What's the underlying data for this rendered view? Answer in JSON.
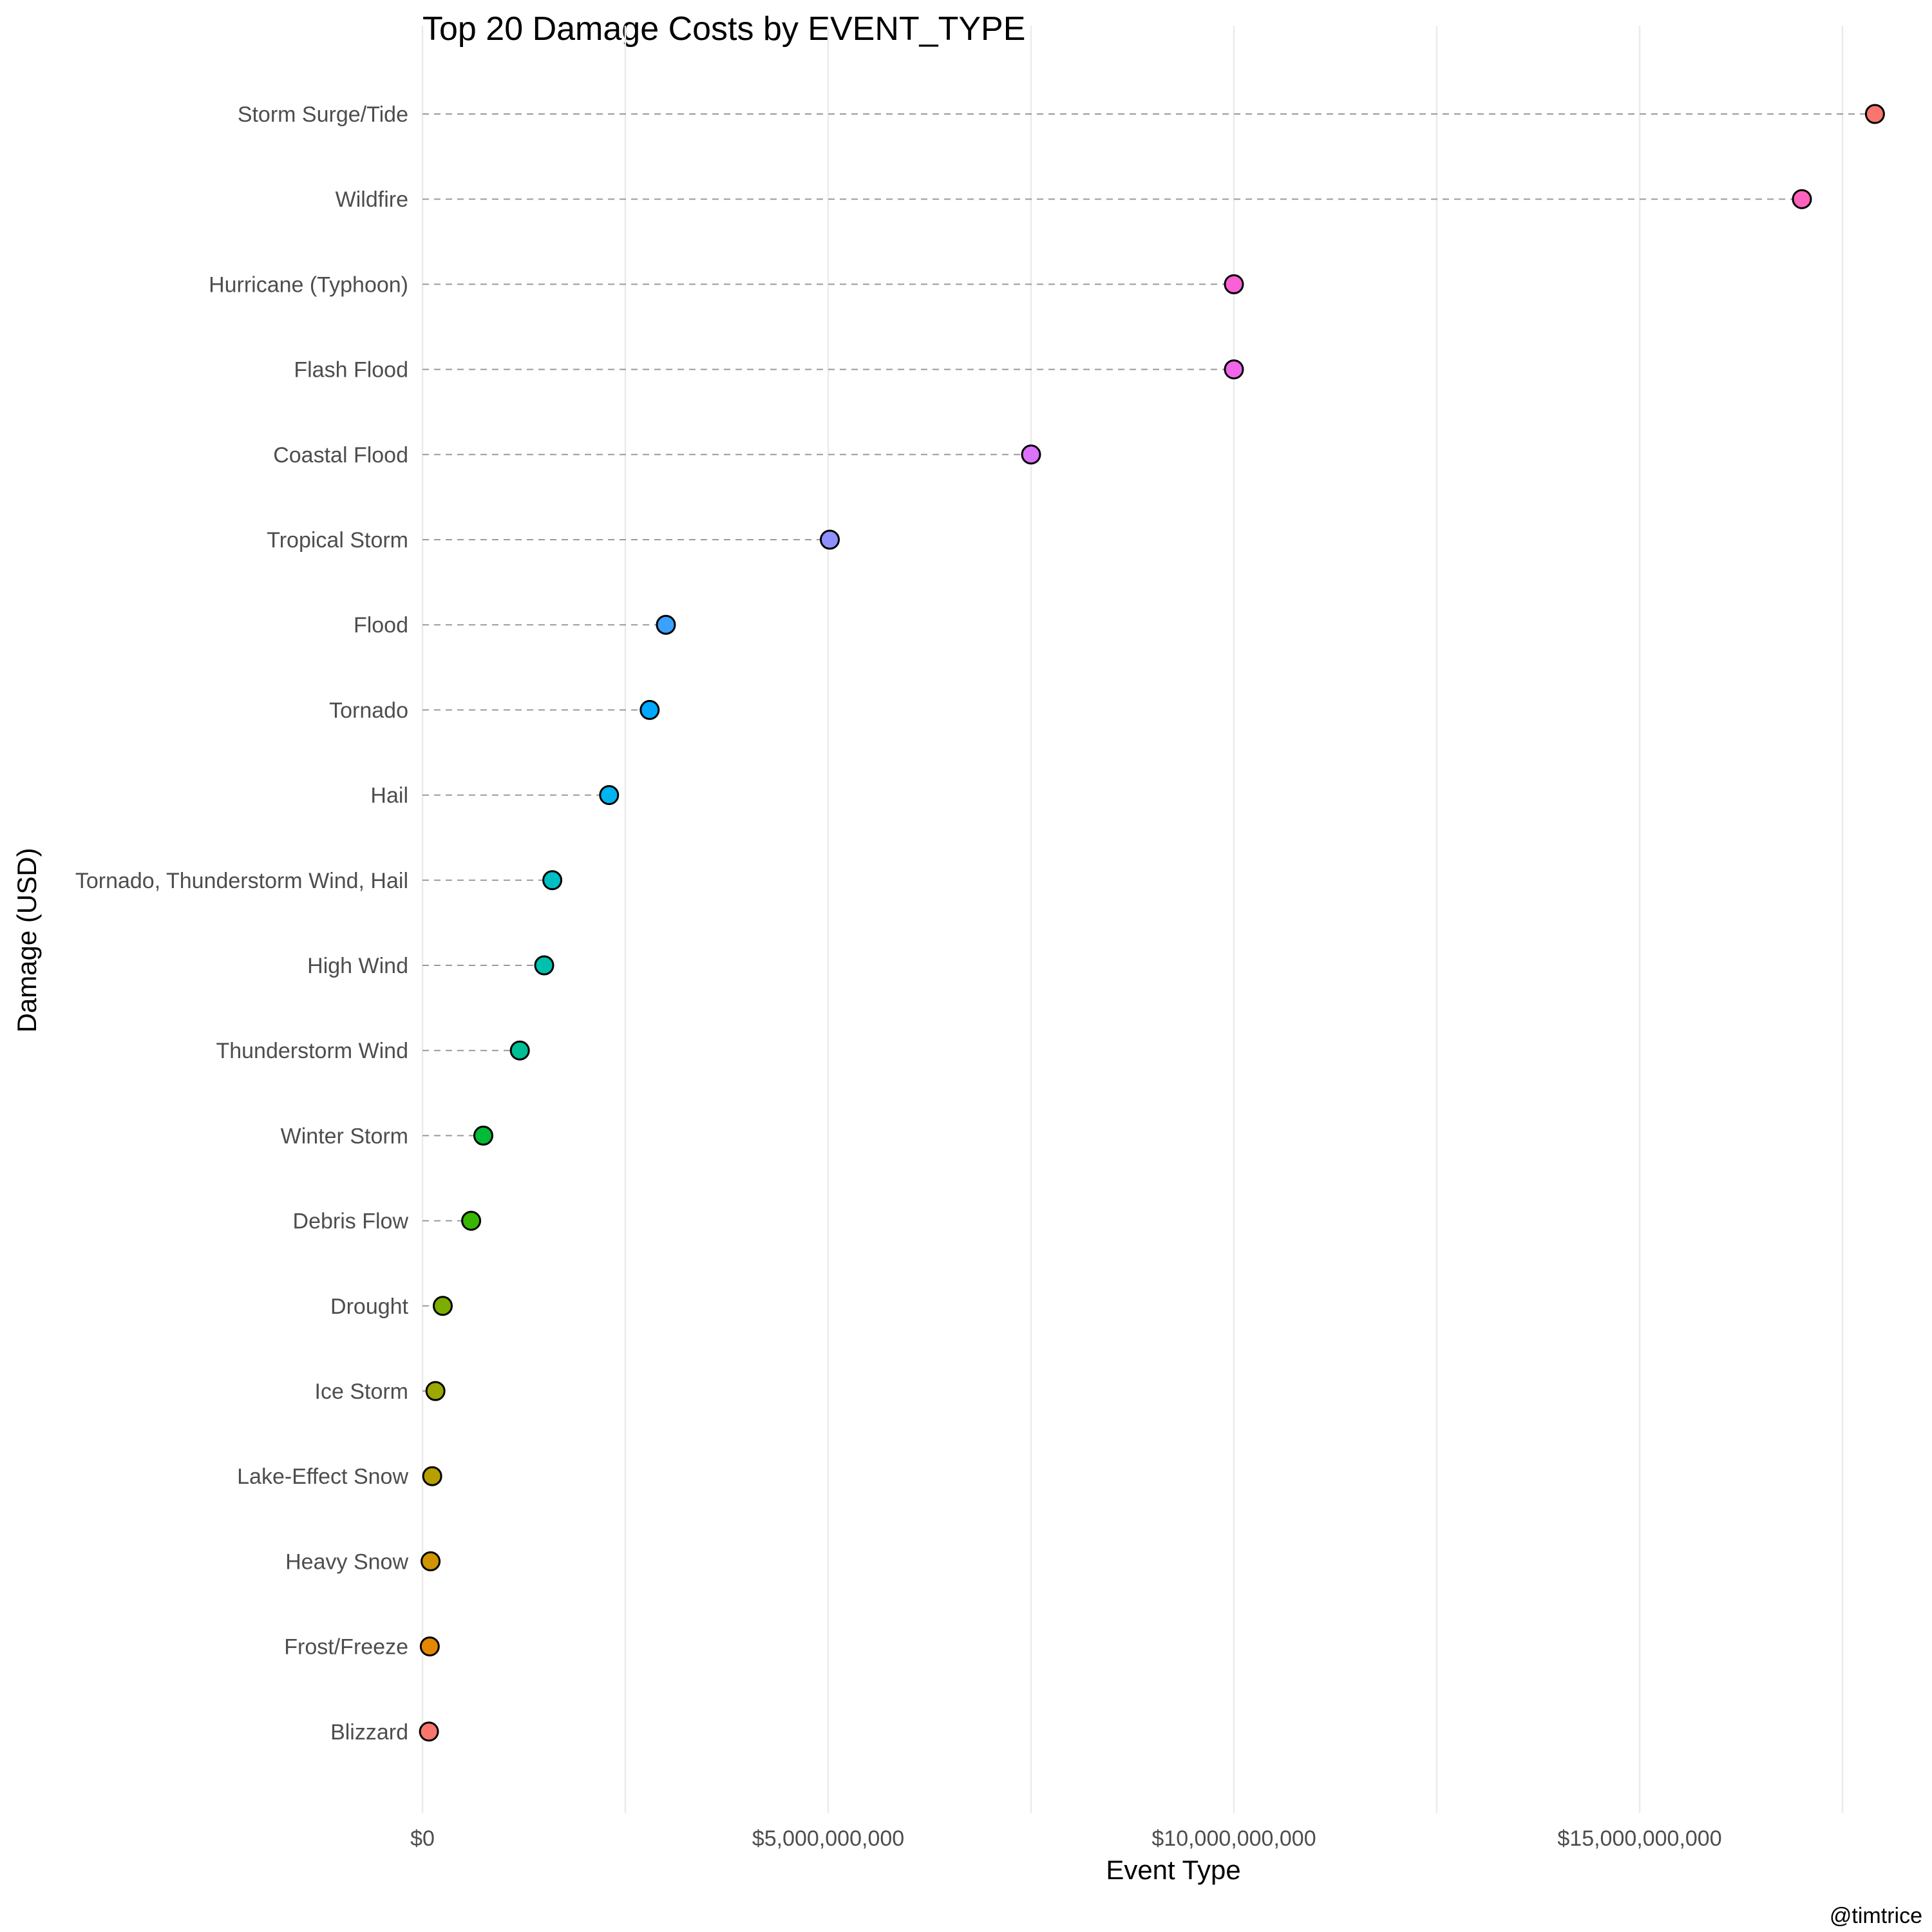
{
  "chart_data": {
    "type": "scatter",
    "title": "Top 20 Damage Costs by EVENT_TYPE",
    "xlabel": "Event Type",
    "ylabel": "Damage (USD)",
    "caption": "@timtrice",
    "xlim": [
      0,
      18500000000
    ],
    "x_ticks": [
      {
        "value": 0,
        "label": "$0"
      },
      {
        "value": 5000000000,
        "label": "$5,000,000,000"
      },
      {
        "value": 10000000000,
        "label": "$10,000,000,000"
      },
      {
        "value": 15000000000,
        "label": "$15,000,000,000"
      }
    ],
    "x_minor_grid": [
      2500000000,
      7500000000,
      12500000000,
      17500000000
    ],
    "grid": true,
    "legend": "none",
    "categories": [
      "Storm Surge/Tide",
      "Wildfire",
      "Hurricane (Typhoon)",
      "Flash Flood",
      "Coastal Flood",
      "Tropical Storm",
      "Flood",
      "Tornado",
      "Hail",
      "Tornado, Thunderstorm Wind, Hail",
      "High Wind",
      "Thunderstorm Wind",
      "Winter Storm",
      "Debris Flow",
      "Drought",
      "Ice Storm",
      "Lake-Effect Snow",
      "Heavy Snow",
      "Frost/Freeze",
      "Blizzard"
    ],
    "values": [
      17900000000,
      17000000000,
      10000000000,
      10000000000,
      7500000000,
      5020000000,
      3000000000,
      2800000000,
      2300000000,
      1600000000,
      1500000000,
      1200000000,
      750000000,
      600000000,
      250000000,
      160000000,
      120000000,
      100000000,
      90000000,
      80000000
    ],
    "colors": [
      "#F8766D",
      "#FF62BC",
      "#FB61D7",
      "#F066EA",
      "#DB72FB",
      "#8F91FF",
      "#3AA1FF",
      "#00A9FF",
      "#00B4EF",
      "#00BFC4",
      "#00C0AF",
      "#00BF94",
      "#00BA38",
      "#39B600",
      "#7CAE00",
      "#9AA800",
      "#B79F00",
      "#CF9400",
      "#E58700",
      "#F8766D"
    ]
  }
}
